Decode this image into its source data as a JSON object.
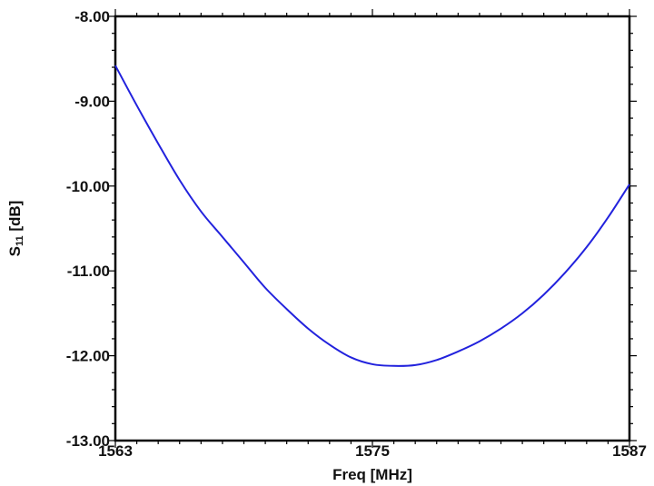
{
  "chart_data": {
    "type": "line",
    "title": "",
    "xlabel": "Freq [MHz]",
    "ylabel_main": "S",
    "ylabel_sub": "11",
    "ylabel_tail": " [dB]",
    "xlim": [
      1563,
      1587
    ],
    "ylim": [
      -13,
      -8
    ],
    "x_ticks": [
      1563,
      1575,
      1587
    ],
    "x_tick_labels": [
      "1563",
      "1575",
      "1587"
    ],
    "y_ticks": [
      -8,
      -9,
      -10,
      -11,
      -12,
      -13
    ],
    "y_tick_labels": [
      "-8.00",
      "-9.00",
      "-10.00",
      "-11.00",
      "-12.00",
      "-13.00"
    ],
    "grid": false,
    "series": [
      {
        "color": "#2222dd",
        "x": [
          1563,
          1564,
          1565,
          1566,
          1567,
          1568,
          1569,
          1570,
          1571,
          1572,
          1573,
          1574,
          1575,
          1576,
          1577,
          1578,
          1579,
          1580,
          1581,
          1582,
          1583,
          1584,
          1585,
          1586,
          1587
        ],
        "y": [
          -8.58,
          -9.05,
          -9.5,
          -9.93,
          -10.3,
          -10.6,
          -10.9,
          -11.2,
          -11.45,
          -11.68,
          -11.87,
          -12.02,
          -12.1,
          -12.12,
          -12.11,
          -12.05,
          -11.95,
          -11.83,
          -11.68,
          -11.5,
          -11.28,
          -11.02,
          -10.72,
          -10.37,
          -9.98
        ]
      }
    ]
  }
}
